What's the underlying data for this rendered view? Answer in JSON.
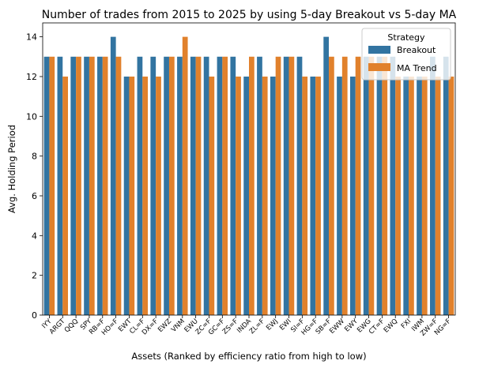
{
  "chart_data": {
    "type": "bar",
    "title": "Number of trades from 2015 to 2025 by using 5-day Breakout vs 5-day MA",
    "xlabel": "Assets (Ranked by efficiency ratio from high to low)",
    "ylabel": "Avg. Holding Period",
    "ylim": [
      0,
      14.7
    ],
    "yticks": [
      0,
      2,
      4,
      6,
      8,
      10,
      12,
      14
    ],
    "grid": false,
    "legend": {
      "title": "Strategy",
      "placement": "top-right"
    },
    "categories": [
      "IYY",
      "ARGT",
      "QQQ",
      "SPY",
      "RB=F",
      "HO=F",
      "EWT",
      "CL=F",
      "DX=F",
      "EWZ",
      "VNM",
      "EWU",
      "ZC=F",
      "GC=F",
      "ZS=F",
      "INDA",
      "ZL=F",
      "EWJ",
      "EWI",
      "SI=F",
      "HG=F",
      "SB=F",
      "EWW",
      "EWY",
      "EWG",
      "CT=F",
      "EWQ",
      "FXI",
      "IWM",
      "ZW=F",
      "NG=F"
    ],
    "series": [
      {
        "name": "Breakout",
        "color": "#3274a1",
        "values": [
          13,
          13,
          13,
          13,
          13,
          14,
          12,
          13,
          13,
          13,
          13,
          13,
          13,
          13,
          13,
          12,
          13,
          12,
          13,
          13,
          12,
          14,
          12,
          12,
          13,
          13,
          13,
          12,
          12,
          13,
          13
        ]
      },
      {
        "name": "MA Trend",
        "color": "#e1812c",
        "values": [
          13,
          12,
          13,
          13,
          13,
          13,
          12,
          12,
          12,
          13,
          14,
          13,
          12,
          13,
          12,
          13,
          12,
          13,
          13,
          12,
          12,
          13,
          13,
          13,
          13,
          13,
          12,
          12,
          12,
          12,
          12
        ]
      }
    ]
  }
}
